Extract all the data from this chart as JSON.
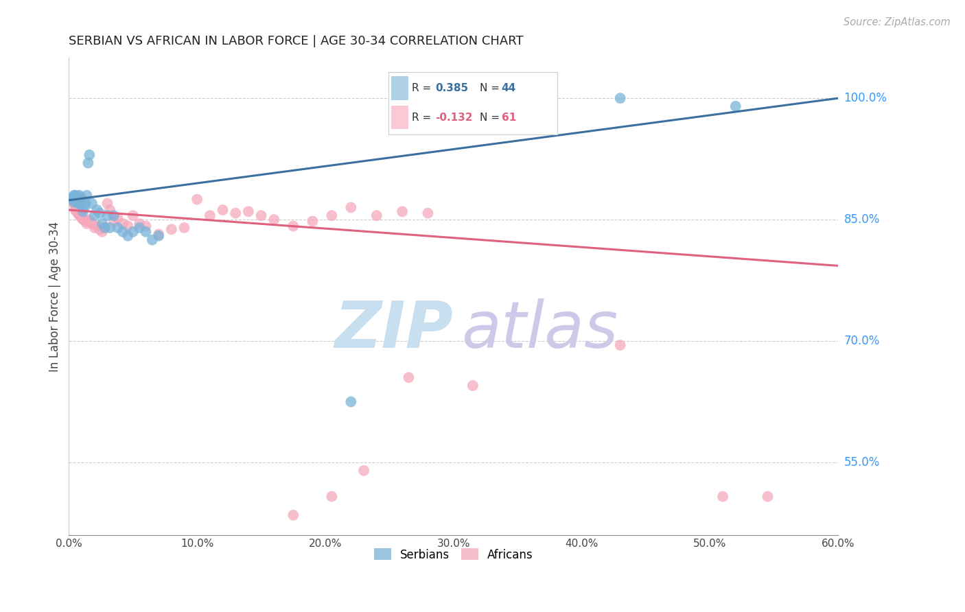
{
  "title": "SERBIAN VS AFRICAN IN LABOR FORCE | AGE 30-34 CORRELATION CHART",
  "source": "Source: ZipAtlas.com",
  "ylabel": "In Labor Force | Age 30-34",
  "xlabel_ticks": [
    "0.0%",
    "10.0%",
    "20.0%",
    "30.0%",
    "40.0%",
    "50.0%",
    "60.0%"
  ],
  "xlabel_vals": [
    0.0,
    0.1,
    0.2,
    0.3,
    0.4,
    0.5,
    0.6
  ],
  "ylabel_ticks": [
    "55.0%",
    "70.0%",
    "85.0%",
    "100.0%"
  ],
  "ylabel_vals": [
    0.55,
    0.7,
    0.85,
    1.0
  ],
  "xmin": 0.0,
  "xmax": 0.6,
  "ymin": 0.46,
  "ymax": 1.05,
  "serbian_R": 0.385,
  "serbian_N": 44,
  "african_R": -0.132,
  "african_N": 61,
  "serbian_color": "#7ab3d9",
  "african_color": "#f5a8bc",
  "serbian_line_color": "#3a6fa0",
  "african_line_color": "#e06080",
  "watermark_zip_color": "#c8dff0",
  "watermark_atlas_color": "#d0c8e8",
  "serbian_line_x0": 0.0,
  "serbian_line_y0": 0.874,
  "serbian_line_x1": 0.6,
  "serbian_line_y1": 1.0,
  "african_line_x0": 0.0,
  "african_line_y0": 0.862,
  "african_line_x1": 0.6,
  "african_line_y1": 0.793,
  "serbian_x": [
    0.002,
    0.003,
    0.004,
    0.004,
    0.005,
    0.005,
    0.005,
    0.006,
    0.006,
    0.007,
    0.007,
    0.008,
    0.008,
    0.009,
    0.009,
    0.01,
    0.01,
    0.011,
    0.012,
    0.013,
    0.014,
    0.015,
    0.016,
    0.018,
    0.02,
    0.022,
    0.024,
    0.026,
    0.028,
    0.03,
    0.032,
    0.035,
    0.038,
    0.042,
    0.046,
    0.05,
    0.055,
    0.06,
    0.065,
    0.07,
    0.22,
    0.36,
    0.43,
    0.52
  ],
  "serbian_y": [
    0.876,
    0.877,
    0.872,
    0.88,
    0.875,
    0.88,
    0.876,
    0.873,
    0.879,
    0.87,
    0.878,
    0.874,
    0.88,
    0.872,
    0.878,
    0.875,
    0.87,
    0.86,
    0.865,
    0.87,
    0.88,
    0.92,
    0.93,
    0.87,
    0.855,
    0.862,
    0.858,
    0.845,
    0.84,
    0.855,
    0.84,
    0.855,
    0.84,
    0.835,
    0.83,
    0.835,
    0.84,
    0.835,
    0.825,
    0.83,
    0.625,
    1.0,
    1.0,
    0.99
  ],
  "african_x": [
    0.002,
    0.003,
    0.004,
    0.005,
    0.005,
    0.006,
    0.006,
    0.007,
    0.007,
    0.008,
    0.008,
    0.009,
    0.009,
    0.01,
    0.01,
    0.011,
    0.012,
    0.013,
    0.014,
    0.015,
    0.016,
    0.018,
    0.02,
    0.022,
    0.024,
    0.026,
    0.028,
    0.03,
    0.032,
    0.035,
    0.038,
    0.042,
    0.046,
    0.05,
    0.055,
    0.06,
    0.07,
    0.08,
    0.09,
    0.1,
    0.11,
    0.12,
    0.13,
    0.14,
    0.15,
    0.16,
    0.175,
    0.19,
    0.205,
    0.22,
    0.24,
    0.26,
    0.28,
    0.175,
    0.205,
    0.23,
    0.265,
    0.315,
    0.43,
    0.51,
    0.545
  ],
  "african_y": [
    0.875,
    0.872,
    0.87,
    0.868,
    0.862,
    0.865,
    0.86,
    0.858,
    0.862,
    0.856,
    0.86,
    0.858,
    0.854,
    0.852,
    0.856,
    0.85,
    0.85,
    0.848,
    0.845,
    0.848,
    0.85,
    0.845,
    0.84,
    0.842,
    0.838,
    0.835,
    0.84,
    0.87,
    0.862,
    0.848,
    0.852,
    0.845,
    0.842,
    0.855,
    0.845,
    0.842,
    0.832,
    0.838,
    0.84,
    0.875,
    0.855,
    0.862,
    0.858,
    0.86,
    0.855,
    0.85,
    0.842,
    0.848,
    0.855,
    0.865,
    0.855,
    0.86,
    0.858,
    0.485,
    0.508,
    0.54,
    0.655,
    0.645,
    0.695,
    0.508,
    0.508
  ]
}
